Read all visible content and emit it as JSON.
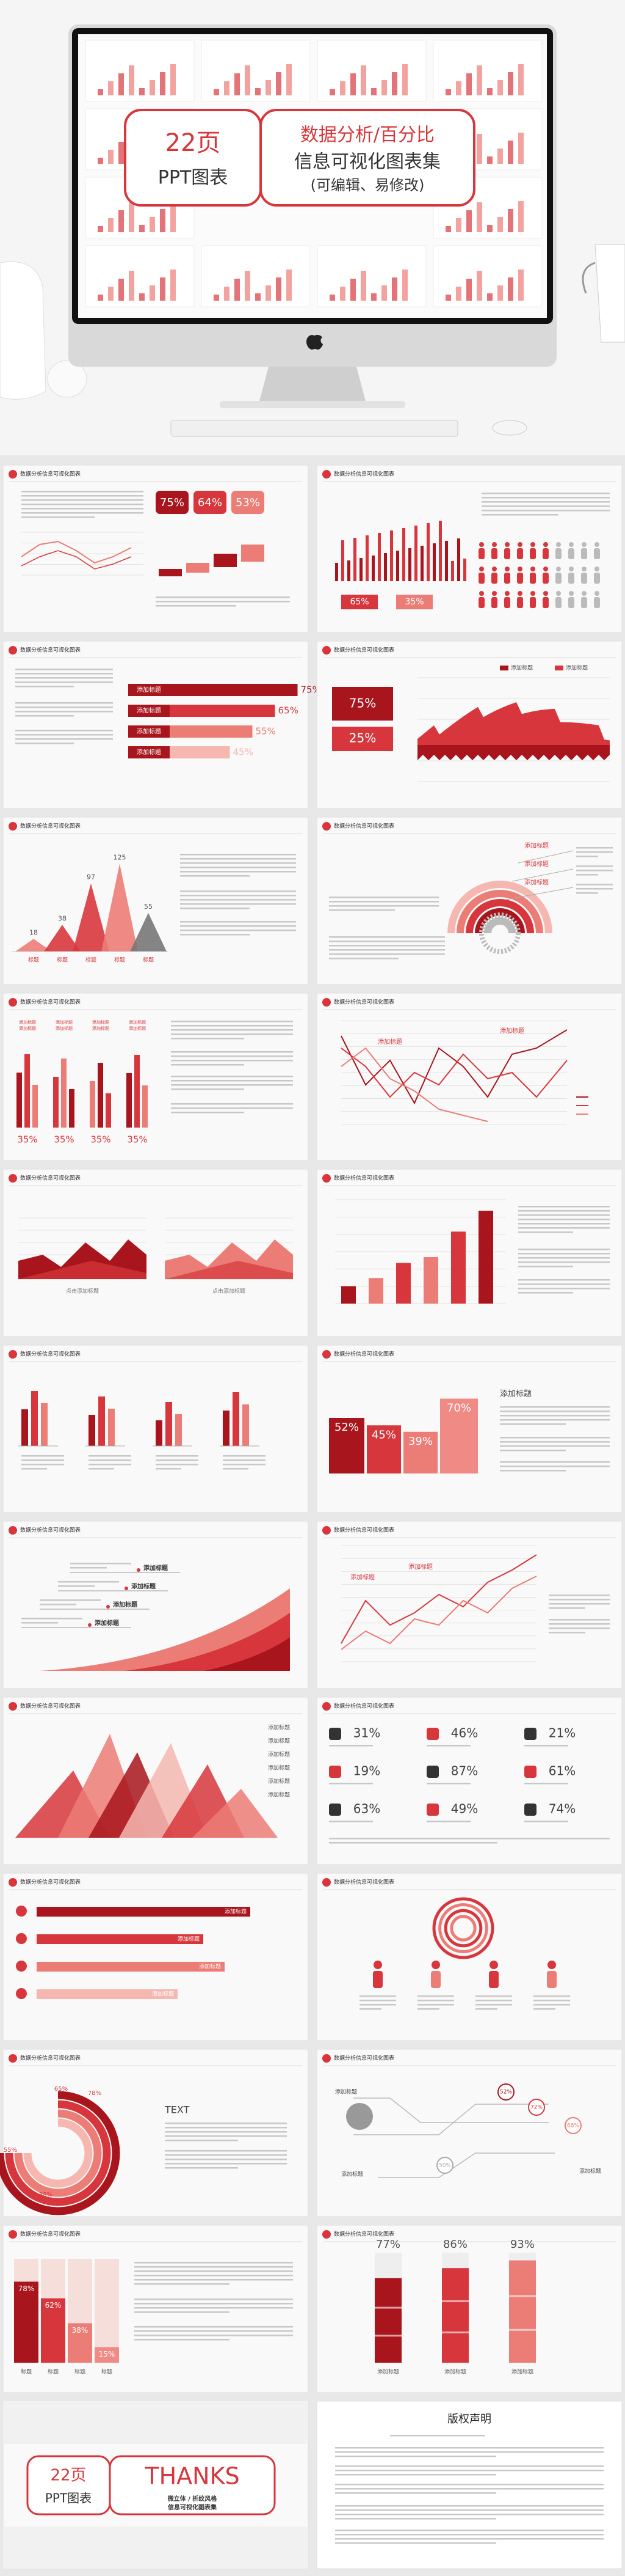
{
  "hero": {
    "pages": "22页",
    "product": "PPT图表",
    "title": "数据分析/百分比",
    "subtitle": "信息可视化图表集",
    "note": "(可编辑、易修改)"
  },
  "slide_header": "数据分析信息可视化图表",
  "slides": [
    {
      "kind": "tiles",
      "value_labels": [
        "75%",
        "64%",
        "53%"
      ]
    },
    {
      "kind": "thinbars",
      "value_labels": [
        "65%",
        "35%"
      ]
    },
    {
      "kind": "hbars",
      "labels": [
        "添加标题",
        "添加标题",
        "添加标题",
        "添加标题"
      ],
      "values": [
        75,
        65,
        55,
        45
      ],
      "value_labels": [
        "75%",
        "65%",
        "55%",
        "45%"
      ]
    },
    {
      "kind": "area",
      "legend": [
        "添加标题",
        "添加标题"
      ],
      "value_labels": [
        "75%",
        "25%"
      ]
    },
    {
      "kind": "peaks",
      "categories": [
        "标题",
        "标题",
        "标题",
        "标题",
        "标题"
      ],
      "values": [
        18,
        38,
        97,
        125,
        55
      ]
    },
    {
      "kind": "ring",
      "labels": [
        "添加标题",
        "添加标题",
        "添加标题"
      ]
    },
    {
      "kind": "groups",
      "labels": [
        "添加标题",
        "添加标题",
        "添加标题",
        "添加标题",
        "添加标题",
        "添加标题",
        "添加标题",
        "添加标题"
      ],
      "value_labels": [
        "35%",
        "35%",
        "35%",
        "35%"
      ]
    },
    {
      "kind": "lines",
      "labels": [
        "添加标题",
        "添加标题"
      ]
    },
    {
      "kind": "twoarea",
      "labels": [
        "点击添加标题",
        "点击添加标题"
      ]
    },
    {
      "kind": "columns",
      "values": [
        15,
        22,
        35,
        40,
        62,
        80
      ]
    },
    {
      "kind": "bargroups"
    },
    {
      "kind": "blocks",
      "title": "添加标题",
      "values": [
        52,
        45,
        39,
        70
      ],
      "value_labels": [
        "52%",
        "45%",
        "39%",
        "70%"
      ]
    },
    {
      "kind": "curve",
      "labels": [
        "添加标题",
        "添加标题",
        "添加标题",
        "添加标题"
      ]
    },
    {
      "kind": "lines2",
      "labels": [
        "添加标题",
        "添加标题"
      ]
    },
    {
      "kind": "mountains",
      "labels": [
        "添加标题",
        "添加标题",
        "添加标题",
        "添加标题",
        "添加标题",
        "添加标题"
      ]
    },
    {
      "kind": "icons",
      "value_labels": [
        "31%",
        "46%",
        "21%",
        "19%",
        "87%",
        "61%",
        "63%",
        "49%",
        "74%"
      ]
    },
    {
      "kind": "iconbars",
      "labels": [
        "添加标题",
        "添加标题",
        "添加标题",
        "添加标题"
      ],
      "values": [
        100,
        78,
        88,
        66
      ]
    },
    {
      "kind": "circles"
    },
    {
      "kind": "semiring",
      "title": "TEXT",
      "value_labels": [
        "65%",
        "78%",
        "55%",
        "38%"
      ]
    },
    {
      "kind": "network",
      "labels": [
        "添加标题",
        "添加标题",
        "添加标题"
      ],
      "value_labels": [
        "52%",
        "72%",
        "50%",
        "68%"
      ]
    },
    {
      "kind": "stacks",
      "categories": [
        "标题",
        "标题",
        "标题",
        "标题"
      ],
      "values": [
        78,
        62,
        38,
        15
      ],
      "value_labels": [
        "78%",
        "62%",
        "38%",
        "15%"
      ]
    },
    {
      "kind": "tubes",
      "labels": [
        "添加标题",
        "添加标题",
        "添加标题"
      ],
      "values": [
        77,
        86,
        93
      ],
      "value_labels": [
        "77%",
        "86%",
        "93%"
      ]
    }
  ],
  "thanks": {
    "pages": "22页",
    "product": "PPT图表",
    "word": "THANKS",
    "lines": [
      "微立体 / 折纹风格",
      "信息可视化图表集"
    ]
  },
  "copyright": {
    "title": "版权声明"
  }
}
